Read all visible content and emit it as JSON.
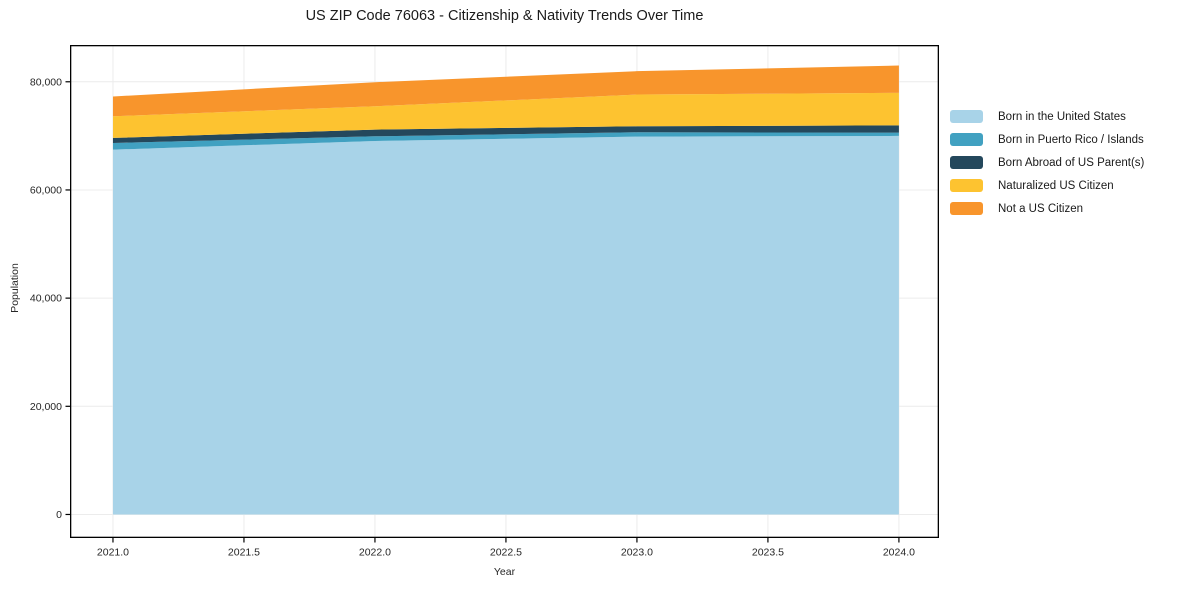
{
  "chart_data": {
    "type": "area",
    "stacked": true,
    "title": "US ZIP Code 76063 - Citizenship & Nativity Trends Over Time",
    "xlabel": "Year",
    "ylabel": "Population",
    "x": [
      2021,
      2022,
      2023,
      2024
    ],
    "series": [
      {
        "name": "Born in the United States",
        "color": "#a8d3e8",
        "values": [
          67450,
          69060,
          69860,
          69990
        ]
      },
      {
        "name": "Born in Puerto Rico / Islands",
        "color": "#41a1c1",
        "values": [
          1240,
          860,
          800,
          610
        ]
      },
      {
        "name": "Born Abroad of US Parent(s)",
        "color": "#24485c",
        "values": [
          930,
          1240,
          1110,
          1350
        ]
      },
      {
        "name": "Naturalized US Citizen",
        "color": "#fdc330",
        "values": [
          4000,
          4310,
          5870,
          6010
        ]
      },
      {
        "name": "Not a US Citizen",
        "color": "#f8952c",
        "values": [
          3660,
          4450,
          4320,
          5050
        ]
      }
    ],
    "stacked_totals": [
      77280,
      79920,
      81960,
      83010
    ],
    "xlim": [
      2020.836,
      2024.153
    ],
    "ylim": [
      -4350,
      86800
    ],
    "x_ticks": {
      "values": [
        2021,
        2021.5,
        2022,
        2022.5,
        2023,
        2023.5,
        2024
      ],
      "labels": [
        "2021.0",
        "2021.5",
        "2022.0",
        "2022.5",
        "2023.0",
        "2023.5",
        "2024.0"
      ]
    },
    "y_ticks": {
      "values": [
        0,
        20000,
        40000,
        60000,
        80000
      ],
      "labels": [
        "0",
        "20,000",
        "40,000",
        "60,000",
        "80,000"
      ]
    },
    "grid": true,
    "legend_position": "right-outside",
    "colors": {
      "grid": "#ececec",
      "axis_border": "#000000",
      "tick_mark": "#000000",
      "tick_label": "#262626",
      "title": "#1a1a1a",
      "background": "#ffffff"
    }
  }
}
